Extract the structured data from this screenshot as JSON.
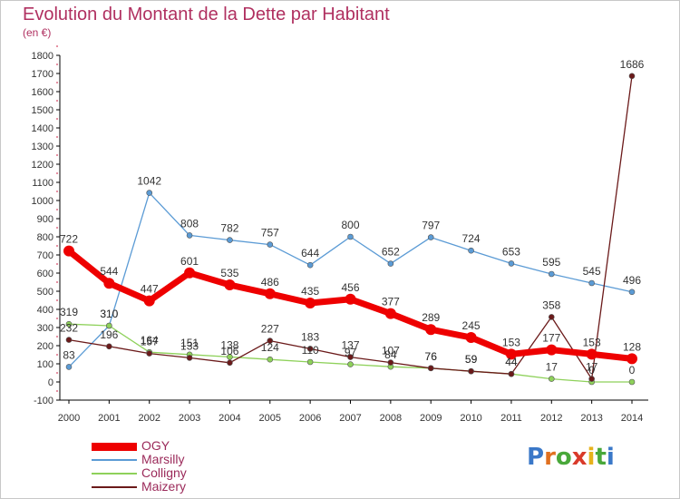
{
  "chart_data": {
    "type": "line",
    "title": "Evolution du Montant de la Dette par Habitant",
    "subtitle": "(en €)",
    "x": [
      "2000",
      "2001",
      "2002",
      "2003",
      "2004",
      "2005",
      "2006",
      "2007",
      "2008",
      "2009",
      "2010",
      "2011",
      "2012",
      "2013",
      "2014"
    ],
    "ylim": [
      -100,
      1800
    ],
    "yticks": [
      -100,
      0,
      100,
      200,
      300,
      400,
      500,
      600,
      700,
      800,
      900,
      1000,
      1100,
      1200,
      1300,
      1400,
      1500,
      1600,
      1700,
      1800
    ],
    "grid": false,
    "legend_position": "bottom-left",
    "series": [
      {
        "name": "OGY",
        "color": "#ee0000",
        "values": [
          722,
          544,
          447,
          601,
          535,
          486,
          435,
          456,
          377,
          289,
          245,
          153,
          177,
          153,
          128
        ]
      },
      {
        "name": "Marsilly",
        "color": "#5b9bd5",
        "values": [
          83,
          310,
          1042,
          808,
          782,
          757,
          644,
          800,
          652,
          797,
          724,
          653,
          595,
          545,
          496
        ]
      },
      {
        "name": "Colligny",
        "color": "#8ed15a",
        "values": [
          319,
          310,
          164,
          151,
          138,
          124,
          110,
          97,
          84,
          76,
          59,
          44,
          17,
          0,
          0
        ]
      },
      {
        "name": "Maizery",
        "color": "#6b1a1a",
        "values": [
          232,
          196,
          157,
          133,
          106,
          227,
          183,
          137,
          107,
          76,
          59,
          44,
          358,
          17,
          1686
        ]
      }
    ]
  },
  "brand": {
    "letters": [
      {
        "ch": "P",
        "color": "#3a78c8"
      },
      {
        "ch": "r",
        "color": "#e07020"
      },
      {
        "ch": "o",
        "color": "#49a83a"
      },
      {
        "ch": "x",
        "color": "#d93a2a"
      },
      {
        "ch": "i",
        "color": "#e7b21c"
      },
      {
        "ch": "t",
        "color": "#49a83a"
      },
      {
        "ch": "i",
        "color": "#3a78c8"
      }
    ]
  }
}
